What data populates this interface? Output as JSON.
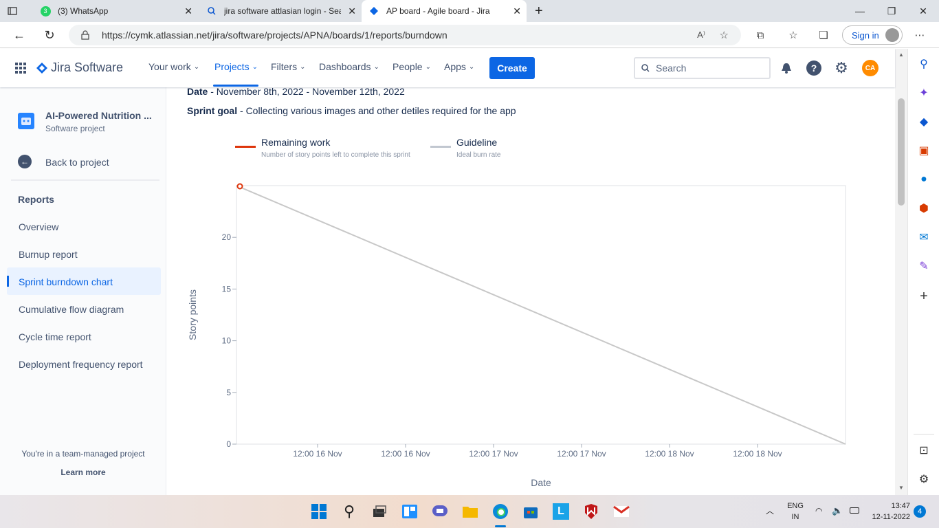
{
  "browser": {
    "tabs": [
      {
        "title": "(3) WhatsApp",
        "badge": "3"
      },
      {
        "title": "jira software attlasian login - Sea"
      },
      {
        "title": "AP board - Agile board - Jira"
      }
    ],
    "url": "https://cymk.atlassian.net/jira/software/projects/APNA/boards/1/reports/burndown",
    "signin_label": "Sign in"
  },
  "jira": {
    "logo": "Jira Software",
    "nav": [
      "Your work",
      "Projects",
      "Filters",
      "Dashboards",
      "People",
      "Apps"
    ],
    "create_label": "Create",
    "search_placeholder": "Search",
    "avatar_initials": "CA"
  },
  "sidebar": {
    "project_name": "AI-Powered Nutrition ...",
    "project_type": "Software project",
    "back_label": "Back to project",
    "section_title": "Reports",
    "items": [
      "Overview",
      "Burnup report",
      "Sprint burndown chart",
      "Cumulative flow diagram",
      "Cycle time report",
      "Deployment frequency report"
    ],
    "footer_text": "You're in a team-managed project",
    "learn_more": "Learn more"
  },
  "report": {
    "date_label": "Date",
    "date_value": " - November 8th, 2022 - November 12th, 2022",
    "goal_label": "Sprint goal",
    "goal_value": " - Collecting various images and other detiles required for the app",
    "legend": [
      {
        "name": "Remaining work",
        "desc": "Number of story points left to complete this sprint",
        "color": "#de350b"
      },
      {
        "name": "Guideline",
        "desc": "Ideal burn rate",
        "color": "#c1c7d0"
      }
    ]
  },
  "chart_data": {
    "type": "line",
    "xlabel": "Date",
    "ylabel": "Story points",
    "ylim": [
      0,
      25
    ],
    "yticks": [
      0,
      5,
      10,
      15,
      20
    ],
    "xtick_labels": [
      "12:00 16 Nov",
      "12:00 16 Nov",
      "12:00 17 Nov",
      "12:00 17 Nov",
      "12:00 18 Nov",
      "12:00 18 Nov"
    ],
    "series": [
      {
        "name": "Guideline",
        "points": [
          [
            0,
            25
          ],
          [
            1,
            0
          ]
        ],
        "color": "#c8c8c8"
      },
      {
        "name": "Remaining work",
        "points": [
          [
            0,
            25
          ]
        ],
        "color": "#de350b"
      }
    ]
  },
  "taskbar": {
    "lang": "ENG",
    "region": "IN",
    "time": "13:47",
    "date": "12-11-2022",
    "notif_count": "4"
  }
}
